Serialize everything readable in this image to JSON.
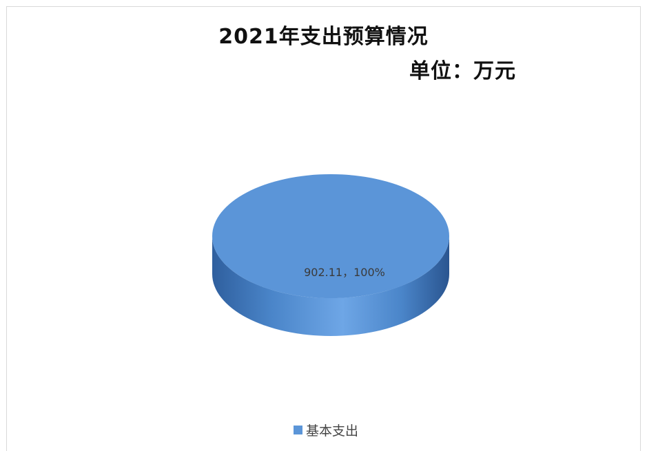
{
  "chart_data": {
    "type": "pie",
    "title": "2021年支出预算情况",
    "subtitle": "单位：万元",
    "categories": [
      "基本支出"
    ],
    "values": [
      902.11
    ],
    "percentages": [
      100
    ],
    "data_labels": [
      "902.11，100%"
    ],
    "legend": {
      "position": "bottom",
      "entries": [
        "基本支出"
      ]
    },
    "colors": {
      "series": "#5b95d8",
      "side_dark": "#2f5f9e",
      "side_light": "#6ea6e6"
    },
    "style": "3d-pie"
  }
}
